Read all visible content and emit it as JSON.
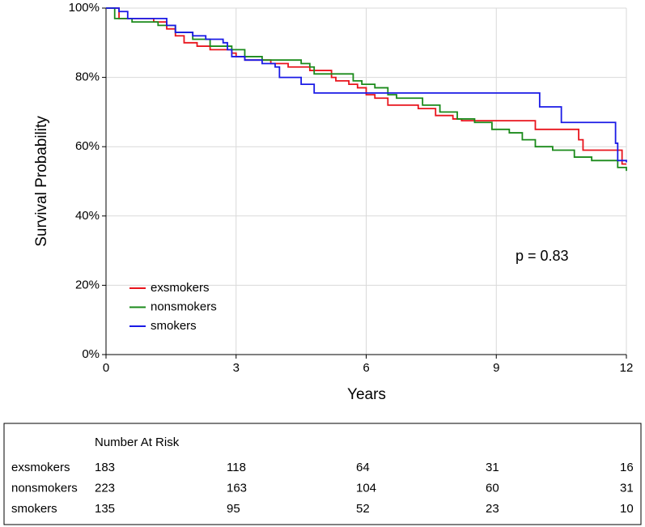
{
  "chart_data": {
    "type": "step",
    "xlabel": "Years",
    "ylabel": "Survival Probability",
    "annotation": "p = 0.83",
    "xlim": [
      0,
      12
    ],
    "ylim": [
      0,
      100
    ],
    "xticks": [
      0,
      3,
      6,
      9,
      12
    ],
    "yticks": [
      {
        "value": 0,
        "label": "0%"
      },
      {
        "value": 20,
        "label": "20%"
      },
      {
        "value": 40,
        "label": "40%"
      },
      {
        "value": 60,
        "label": "60%"
      },
      {
        "value": 80,
        "label": "80%"
      },
      {
        "value": 100,
        "label": "100%"
      }
    ],
    "grid": true,
    "legend": "lower left",
    "series": [
      {
        "name": "exsmokers",
        "color": "#e8141c",
        "x": [
          0,
          0.3,
          1.1,
          1.4,
          1.6,
          1.8,
          2.1,
          2.4,
          2.9,
          3.0,
          3.2,
          3.8,
          4.2,
          4.7,
          5.2,
          5.3,
          5.6,
          5.8,
          6.0,
          6.2,
          6.5,
          7.2,
          7.6,
          8.0,
          8.2,
          9.9,
          10.9,
          11.0,
          11.9,
          12
        ],
        "y": [
          100,
          97,
          96,
          94,
          92,
          90,
          89,
          88,
          87,
          86,
          85,
          84,
          83,
          82,
          80,
          79,
          78,
          77,
          75,
          74,
          72,
          71,
          69,
          68,
          67.5,
          65,
          62,
          59,
          55,
          55
        ]
      },
      {
        "name": "nonsmokers",
        "color": "#1a8a1a",
        "x": [
          0,
          0.2,
          0.6,
          1.2,
          1.6,
          2.0,
          2.4,
          2.9,
          3.2,
          3.6,
          4.5,
          4.7,
          4.8,
          5.7,
          5.9,
          6.2,
          6.5,
          6.7,
          7.3,
          7.7,
          8.1,
          8.5,
          8.9,
          9.3,
          9.6,
          9.9,
          10.3,
          10.8,
          11.2,
          11.8,
          12
        ],
        "y": [
          100,
          97,
          96,
          95,
          93,
          91,
          89,
          88,
          86,
          85,
          84,
          83,
          81,
          79,
          78,
          77,
          75,
          74,
          72,
          70,
          68,
          67,
          65,
          64,
          62,
          60,
          59,
          57,
          56,
          54,
          53
        ]
      },
      {
        "name": "smokers",
        "color": "#1a1ae6",
        "x": [
          0,
          0.3,
          0.5,
          1.4,
          1.6,
          2.0,
          2.3,
          2.7,
          2.8,
          2.9,
          3.2,
          3.6,
          3.9,
          4.0,
          4.5,
          4.8,
          10.0,
          10.5,
          11.75,
          11.8,
          12
        ],
        "y": [
          100,
          99,
          97,
          95,
          93,
          92,
          91,
          90,
          88,
          86,
          85,
          84,
          83,
          80,
          78,
          75.5,
          71.5,
          67,
          61,
          56,
          55.5
        ]
      }
    ],
    "risk_table": {
      "title": "Number At Risk",
      "counts": [
        [
          183,
          118,
          64,
          31,
          16
        ],
        [
          223,
          163,
          104,
          60,
          31
        ],
        [
          135,
          95,
          52,
          23,
          10
        ]
      ]
    }
  }
}
